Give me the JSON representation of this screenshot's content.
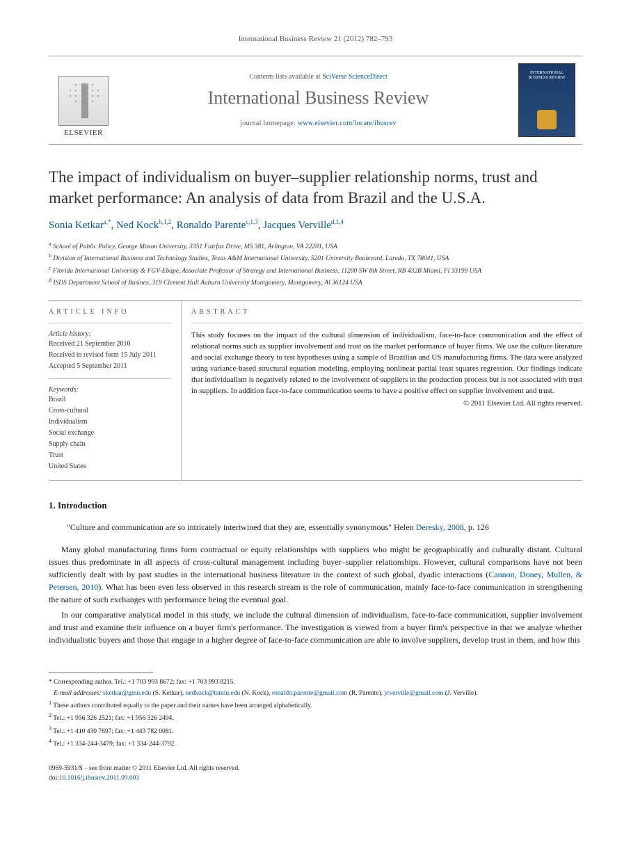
{
  "header_citation": "International Business Review 21 (2012) 782–793",
  "masthead": {
    "contents_prefix": "Contents lists available at ",
    "contents_link": "SciVerse ScienceDirect",
    "journal_title": "International Business Review",
    "homepage_prefix": "journal homepage: ",
    "homepage_link": "www.elsevier.com/locate/ibusrev",
    "publisher": "ELSEVIER",
    "cover_title": "INTERNATIONAL BUSINESS REVIEW"
  },
  "title": "The impact of individualism on buyer–supplier relationship norms, trust and market performance: An analysis of data from Brazil and the U.S.A.",
  "authors": [
    {
      "name": "Sonia Ketkar",
      "marks": "a,*"
    },
    {
      "name": "Ned Kock",
      "marks": "b,1,2"
    },
    {
      "name": "Ronaldo Parente",
      "marks": "c,1,3"
    },
    {
      "name": "Jacques Verville",
      "marks": "d,1,4"
    }
  ],
  "affiliations": [
    {
      "mark": "a",
      "text": "School of Public Policy, George Mason University, 3351 Fairfax Drive, MS 381, Arlington, VA 22201, USA"
    },
    {
      "mark": "b",
      "text": "Division of International Business and Technology Studies, Texas A&M International University, 5201 University Boulevard, Laredo, TX 78041, USA"
    },
    {
      "mark": "c",
      "text": "Florida International University & FGV-Ebape, Associate Professor of Strategy and International Business, 11200 SW 8th Street, RB 432B Miami, Fl 33199 USA"
    },
    {
      "mark": "d",
      "text": "ISDS Department School of Busines, 319 Clement Hall Auburn University Montgomery, Montgomery, Al 36124 USA"
    }
  ],
  "info": {
    "heading": "ARTICLE INFO",
    "history_label": "Article history:",
    "history": [
      "Received 21 September 2010",
      "Received in revised form 15 July 2011",
      "Accepted 5 September 2011"
    ],
    "keywords_label": "Keywords:",
    "keywords": [
      "Brazil",
      "Cross-cultural",
      "Individualism",
      "Social exchange",
      "Supply chain",
      "Trust",
      "United States"
    ]
  },
  "abstract": {
    "heading": "ABSTRACT",
    "text": "This study focuses on the impact of the cultural dimension of individualism, face-to-face communication and the effect of relational norms such as supplier involvement and trust on the market performance of buyer firms. We use the culture literature and social exchange theory to test hypotheses using a sample of Brazilian and US manufacturing firms. The data were analyzed using variance-based structural equation modeling, employing nonlinear partial least squares regression. Our findings indicate that individualism is negatively related to the involvement of suppliers in the production process but is not associated with trust in suppliers. In addition face-to-face communication seems to have a positive effect on supplier involvement and trust.",
    "copyright": "© 2011 Elsevier Ltd. All rights reserved."
  },
  "section1": {
    "heading": "1. Introduction",
    "quote_text": "\"Culture and communication are so intricately intertwined that they are, essentially synonymous\" Helen ",
    "quote_cite": "Deresky, 2008",
    "quote_suffix": ", p. 126",
    "p1_a": "Many global manufacturing firms form contractual or equity relationships with suppliers who might be geographically and culturally distant. Cultural issues thus predominate in all aspects of cross-cultural management including buyer–supplier relationships. However, cultural comparisons have not been sufficiently dealt with by past studies in the international business literature in the context of such global, dyadic interactions (",
    "p1_cite": "Cannon, Doney, Mullen, & Petersen, 2010",
    "p1_b": "). What has been even less observed in this research stream is the role of communication, mainly face-to-face communication in strengthening the nature of such exchanges with performance being the eventual goal.",
    "p2": "In our comparative analytical model in this study, we include the cultural dimension of individualism, face-to-face communication, supplier involvement and trust and examine their influence on a buyer firm's performance. The investigation is viewed from a buyer firm's perspective in that we analyze whether individualistic buyers and those that engage in a higher degree of face-to-face communication are able to involve suppliers, develop trust in them, and how this"
  },
  "footnotes": {
    "corresponding": "* Corresponding author. Tel.: +1 703 993 8672; fax: +1 703 993 8215.",
    "emails_label": "E-mail addresses: ",
    "emails": [
      {
        "addr": "sketkar@gmu.edu",
        "who": "(S. Ketkar)"
      },
      {
        "addr": "nedkock@tamiu.edu",
        "who": "(N. Kock)"
      },
      {
        "addr": "ronaldo.parente@gmail.com",
        "who": "(R. Parente)"
      },
      {
        "addr": "jcverville@gmail.com",
        "who": "(J. Verville)."
      }
    ],
    "notes": [
      {
        "mark": "1",
        "text": "These authors contributed equally to the paper and their names have been arranged alphabetically."
      },
      {
        "mark": "2",
        "text": "Tel.: +1 956 326 2521; fax: +1 956 326 2494."
      },
      {
        "mark": "3",
        "text": "Tel.: +1 410 430 7697; fax: +1 443 782 0081."
      },
      {
        "mark": "4",
        "text": "Tel.: +1 334-244-3479; fax: +1 334-244-3792."
      }
    ]
  },
  "footer": {
    "front_matter": "0969-5931/$ – see front matter © 2011 Elsevier Ltd. All rights reserved.",
    "doi_prefix": "doi:",
    "doi": "10.1016/j.ibusrev.2011.09.003"
  }
}
